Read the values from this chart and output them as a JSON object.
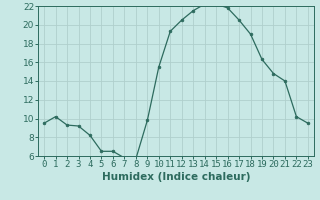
{
  "x": [
    0,
    1,
    2,
    3,
    4,
    5,
    6,
    7,
    8,
    9,
    10,
    11,
    12,
    13,
    14,
    15,
    16,
    17,
    18,
    19,
    20,
    21,
    22,
    23
  ],
  "y": [
    9.5,
    10.2,
    9.3,
    9.2,
    8.2,
    6.5,
    6.5,
    5.8,
    5.7,
    9.8,
    15.5,
    19.3,
    20.5,
    21.5,
    22.2,
    22.2,
    21.8,
    20.5,
    19.0,
    16.3,
    14.8,
    14.0,
    10.2,
    9.5
  ],
  "line_color": "#2d6b5e",
  "marker_color": "#2d6b5e",
  "bg_color": "#c8e8e5",
  "grid_color": "#b0cfcc",
  "xlabel": "Humidex (Indice chaleur)",
  "ylim": [
    6,
    22
  ],
  "xlim": [
    -0.5,
    23.5
  ],
  "yticks": [
    6,
    8,
    10,
    12,
    14,
    16,
    18,
    20,
    22
  ],
  "xticks": [
    0,
    1,
    2,
    3,
    4,
    5,
    6,
    7,
    8,
    9,
    10,
    11,
    12,
    13,
    14,
    15,
    16,
    17,
    18,
    19,
    20,
    21,
    22,
    23
  ],
  "xlabel_fontsize": 7.5,
  "tick_fontsize": 6.5
}
